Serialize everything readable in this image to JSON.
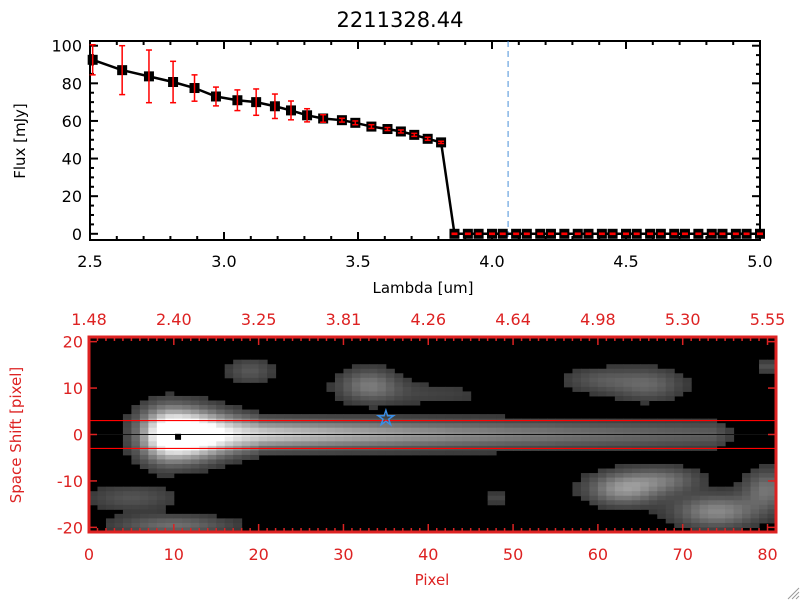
{
  "chart_data": [
    {
      "type": "line",
      "title": "2211328.44",
      "xlabel": "Lambda [um]",
      "ylabel": "Flux [mJy]",
      "xlim": [
        2.5,
        5.0
      ],
      "ylim": [
        -3.3,
        102.5
      ],
      "xticks": [
        "2.5",
        "3.0",
        "3.5",
        "4.0",
        "4.5",
        "5.0"
      ],
      "yticks": [
        "0",
        "20",
        "40",
        "60",
        "80",
        "100"
      ],
      "marker_line_color": "#000000",
      "error_color": "#ff0000",
      "vline": {
        "x": 4.06,
        "color": "#4a90d9",
        "style": "dashed"
      },
      "x": [
        2.51,
        2.62,
        2.72,
        2.81,
        2.89,
        2.97,
        3.05,
        3.12,
        3.19,
        3.25,
        3.31,
        3.37,
        3.44,
        3.49,
        3.55,
        3.61,
        3.66,
        3.71,
        3.76,
        3.81,
        3.86,
        3.91,
        3.95,
        4.0,
        4.04,
        4.09,
        4.13,
        4.18,
        4.22,
        4.27,
        4.32,
        4.36,
        4.41,
        4.45,
        4.5,
        4.54,
        4.59,
        4.63,
        4.68,
        4.72,
        4.77,
        4.82,
        4.86,
        4.91,
        4.95,
        5.0
      ],
      "y": [
        92.5,
        87,
        83.7,
        80.7,
        77.5,
        73,
        71,
        70,
        67.8,
        65.6,
        63,
        61.3,
        60.4,
        59,
        57,
        55.7,
        54.4,
        52.6,
        50.5,
        48.6,
        0,
        0,
        0,
        0,
        0,
        0,
        0,
        0,
        0,
        0,
        0,
        0,
        0,
        0,
        0,
        0,
        0,
        0,
        0,
        0,
        0,
        0,
        0,
        0,
        0,
        0
      ],
      "yerr": [
        8,
        13,
        14,
        11,
        7,
        5,
        5.5,
        7,
        6.5,
        5,
        3.5,
        2,
        1,
        1,
        1,
        0.8,
        0.8,
        0.8,
        0.8,
        0.6,
        0.3,
        0.3,
        0.3,
        0.3,
        0.3,
        0.3,
        0.3,
        0.3,
        0.3,
        0.3,
        0.3,
        0.3,
        0.3,
        0.3,
        0.3,
        0.3,
        0.3,
        0.3,
        0.3,
        0.3,
        0.3,
        0.3,
        0.3,
        0.3,
        0.3,
        0.3
      ]
    },
    {
      "type": "heatmap",
      "xlabel": "Pixel",
      "ylabel": "Space Shift [pixel]",
      "xlim": [
        0,
        81
      ],
      "ylim": [
        -21,
        21
      ],
      "xticks": [
        "0",
        "10",
        "20",
        "30",
        "40",
        "50",
        "60",
        "70",
        "80"
      ],
      "yticks": [
        "20",
        "10",
        "0",
        "-10",
        "-20"
      ],
      "top_xticks": [
        "1.48",
        "2.40",
        "3.25",
        "3.81",
        "4.26",
        "4.64",
        "4.98",
        "5.30",
        "5.55"
      ],
      "axis_color": "#dd2222",
      "colormap": "grayscale",
      "aperture_lines": [
        3,
        -3
      ],
      "aperture_color": "#ff0000",
      "center_line": 0,
      "star_marker": {
        "x": 35,
        "y": 3.5,
        "color": "#3a8ee6"
      },
      "peak_marker": {
        "x": 10.5,
        "y": -0.5,
        "color": "#000000"
      }
    }
  ]
}
